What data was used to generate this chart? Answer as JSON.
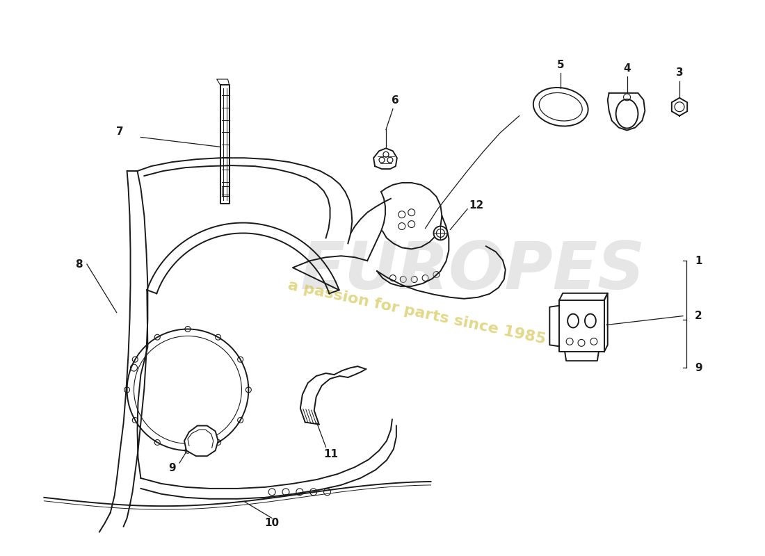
{
  "bg_color": "#ffffff",
  "line_color": "#1a1a1a",
  "lw_main": 1.4,
  "lw_thin": 0.8,
  "watermark1": "EUROPES",
  "watermark2": "a passion for parts since 1985"
}
